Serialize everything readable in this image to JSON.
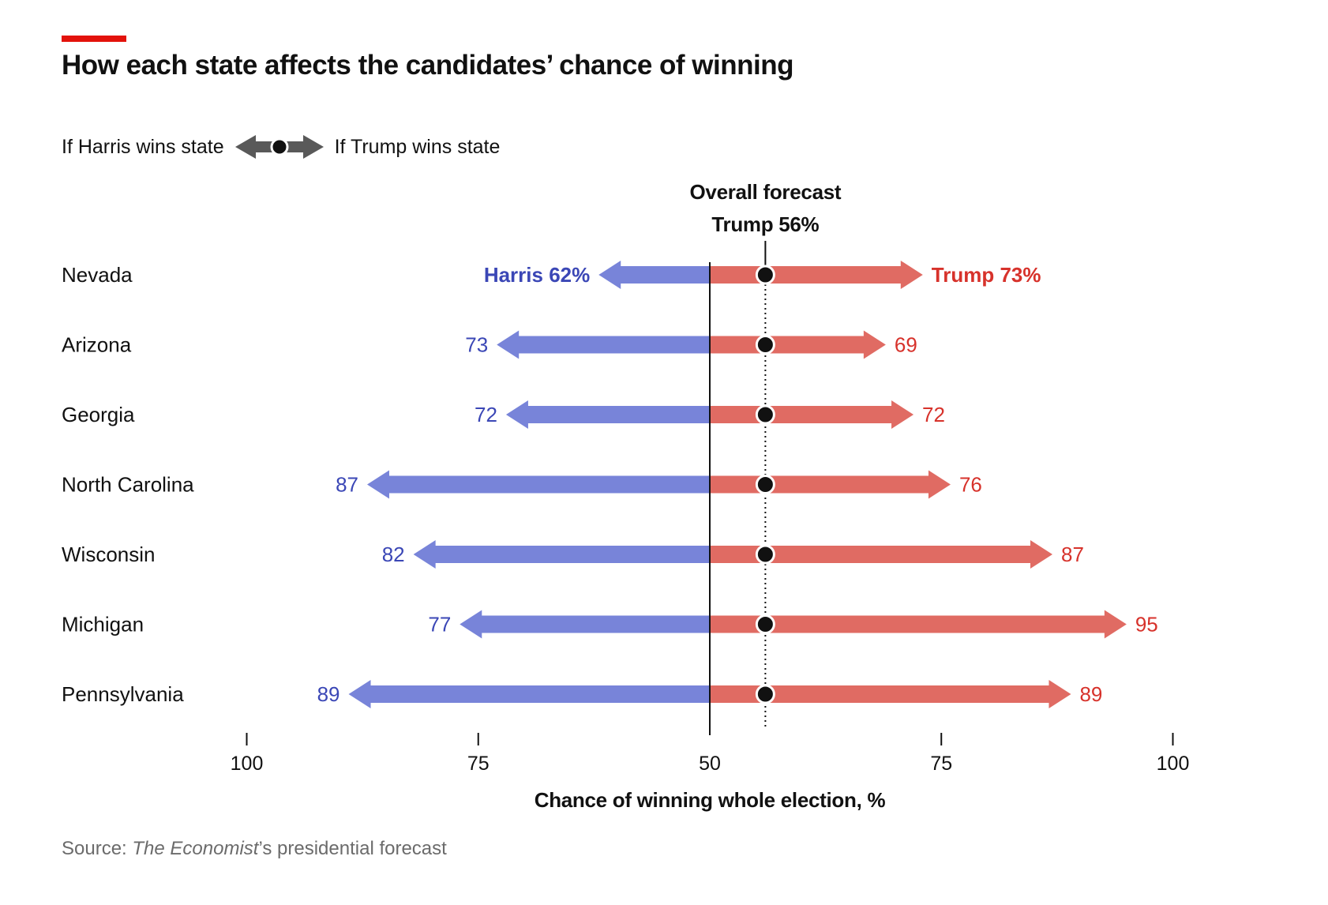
{
  "title": "How each state affects the candidates’ chance of winning",
  "legend": {
    "left_label": "If Harris wins state",
    "right_label": "If Trump wins state"
  },
  "source": {
    "prefix": "Source: ",
    "publication": "The Economist",
    "suffix": "’s presidential forecast"
  },
  "colors": {
    "harris": "#7884d9",
    "harris_text": "#3b47b6",
    "trump": "#e06b63",
    "trump_text": "#d7322b",
    "accent": "#e3120b",
    "legend_arrow": "#595959"
  },
  "chart_data": {
    "type": "bar",
    "description_type": "diverging arrow chart",
    "xlabel": "Chance of winning whole election, %",
    "x_ticks": [
      100,
      75,
      50,
      75,
      100
    ],
    "overall": {
      "label_line1": "Overall forecast",
      "label_line2": "Trump 56%",
      "value": 56
    },
    "categories": [
      "Nevada",
      "Arizona",
      "Georgia",
      "North Carolina",
      "Wisconsin",
      "Michigan",
      "Pennsylvania"
    ],
    "series": [
      {
        "name": "If Harris wins state",
        "values": [
          62,
          73,
          72,
          87,
          82,
          77,
          89
        ],
        "labels": [
          "Harris 62%",
          "73",
          "72",
          "87",
          "82",
          "77",
          "89"
        ]
      },
      {
        "name": "If Trump wins state",
        "values": [
          73,
          69,
          72,
          76,
          87,
          95,
          89
        ],
        "labels": [
          "Trump 73%",
          "69",
          "72",
          "76",
          "87",
          "95",
          "89"
        ]
      }
    ]
  }
}
